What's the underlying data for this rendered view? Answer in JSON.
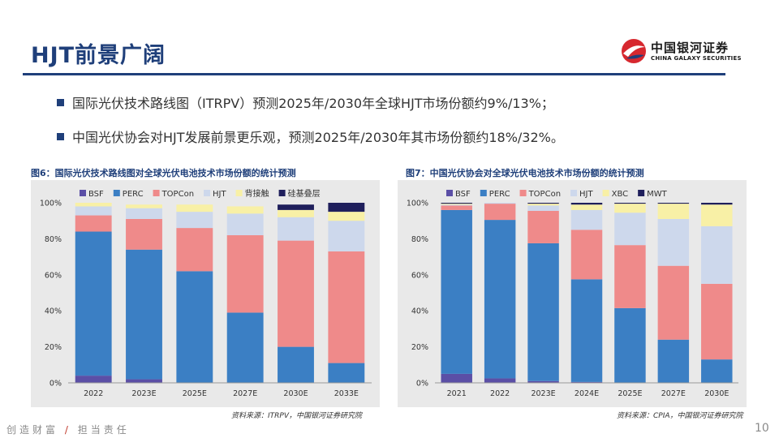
{
  "header": {
    "title": "HJT前景广阔",
    "logo_cn": "中国银河证券",
    "logo_en": "CHINA GALAXY SECURITIES"
  },
  "bullets": [
    "国际光伏技术路线图（ITRPV）预测2025年/2030年全球HJT市场份额约9%/13%；",
    "中国光伏协会对HJT发展前景更乐观，预测2025年/2030年其市场份额约18%/32%。"
  ],
  "footer": {
    "slogan_left": "创造财富",
    "slogan_sep": "/",
    "slogan_right": "担当责任",
    "page": "10"
  },
  "colors": {
    "brand": "#1f3f7a",
    "logo_red": "#d7282f",
    "BSF": "#5b4fa6",
    "PERC": "#3b7fc4",
    "TOPCon": "#ef8a8a",
    "HJT": "#cdd8ec",
    "XBC": "#f8f0a6",
    "MWT": "#1f1f5c"
  },
  "chart_data": [
    {
      "type": "bar",
      "stacked": true,
      "title": "图6：国际光伏技术路线图对全球光伏电池技术市场份额的统计预测",
      "source": "资料来源：ITRPV，中国银河证券研究院",
      "categories": [
        "2022",
        "2023E",
        "2025E",
        "2027E",
        "2030E",
        "2033E"
      ],
      "ylim": [
        0,
        100
      ],
      "yticks": [
        "0%",
        "20%",
        "40%",
        "60%",
        "80%",
        "100%"
      ],
      "grid": false,
      "legend": "top",
      "series": [
        {
          "name": "BSF",
          "values": [
            4,
            2,
            0,
            0,
            0,
            0
          ]
        },
        {
          "name": "PERC",
          "values": [
            80,
            72,
            62,
            39,
            20,
            11
          ]
        },
        {
          "name": "TOPCon",
          "values": [
            9,
            17,
            24,
            43,
            59,
            62
          ]
        },
        {
          "name": "HJT",
          "values": [
            5,
            6,
            9,
            12,
            13,
            17
          ]
        },
        {
          "name": "背接触",
          "values": [
            2,
            2,
            4,
            4,
            4,
            5
          ]
        },
        {
          "name": "硅基叠层",
          "values": [
            0,
            0,
            0,
            0,
            3,
            5
          ]
        }
      ]
    },
    {
      "type": "bar",
      "stacked": true,
      "title": "图7：中国光伏协会对全球光伏电池技术市场份额的统计预测",
      "source": "资料来源：CPIA，中国银河证券研究院",
      "categories": [
        "2021",
        "2022",
        "2023E",
        "2024E",
        "2025E",
        "2027E",
        "2030E"
      ],
      "ylim": [
        0,
        100
      ],
      "yticks": [
        "0%",
        "20%",
        "40%",
        "60%",
        "80%",
        "100%"
      ],
      "grid": false,
      "legend": "top",
      "series": [
        {
          "name": "BSF",
          "values": [
            5,
            2.5,
            1,
            0.5,
            0,
            0,
            0
          ]
        },
        {
          "name": "PERC",
          "values": [
            91,
            88,
            76.5,
            57,
            41.5,
            24,
            13
          ]
        },
        {
          "name": "TOPCon",
          "values": [
            2.5,
            9,
            18,
            27.5,
            35,
            41,
            42
          ]
        },
        {
          "name": "HJT",
          "values": [
            0.5,
            0.5,
            3,
            11,
            18,
            26,
            32
          ]
        },
        {
          "name": "XBC",
          "values": [
            0.5,
            0,
            1,
            3,
            5,
            8.5,
            12
          ]
        },
        {
          "name": "MWT",
          "values": [
            0.5,
            0,
            0.5,
            1,
            0.5,
            0.5,
            1
          ]
        }
      ]
    }
  ]
}
